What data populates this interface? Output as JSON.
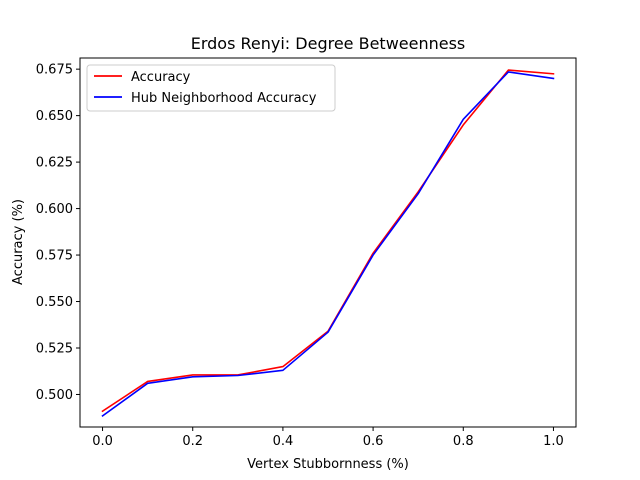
{
  "chart_data": {
    "type": "line",
    "title": "Erdos Renyi: Degree Betweenness",
    "xlabel": "Vertex Stubbornness (%)",
    "ylabel": "Accuracy (%)",
    "xlim": [
      -0.05,
      1.05
    ],
    "ylim": [
      0.4825,
      0.681
    ],
    "x": [
      0.0,
      0.1,
      0.2,
      0.3,
      0.4,
      0.5,
      0.6,
      0.7,
      0.8,
      0.9,
      1.0
    ],
    "xticks": [
      0.0,
      0.2,
      0.4,
      0.6,
      0.8,
      1.0
    ],
    "xtick_labels": [
      "0.0",
      "0.2",
      "0.4",
      "0.6",
      "0.8",
      "1.0"
    ],
    "yticks": [
      0.5,
      0.525,
      0.55,
      0.575,
      0.6,
      0.625,
      0.65,
      0.675
    ],
    "ytick_labels": [
      "0.500",
      "0.525",
      "0.550",
      "0.575",
      "0.600",
      "0.625",
      "0.650",
      "0.675"
    ],
    "grid": false,
    "legend_position": "upper-left",
    "series": [
      {
        "name": "Accuracy",
        "color": "#ff0000",
        "values": [
          0.491,
          0.507,
          0.5105,
          0.5105,
          0.515,
          0.534,
          0.576,
          0.609,
          0.645,
          0.6745,
          0.6725
        ]
      },
      {
        "name": "Hub Neighborhood Accuracy",
        "color": "#0000ff",
        "values": [
          0.4885,
          0.506,
          0.5095,
          0.5102,
          0.513,
          0.5335,
          0.575,
          0.608,
          0.648,
          0.6735,
          0.67
        ]
      }
    ]
  }
}
